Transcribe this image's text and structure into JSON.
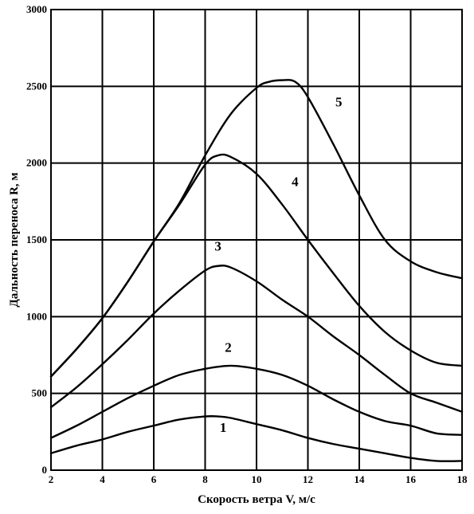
{
  "chart_data": {
    "type": "line",
    "title": "",
    "xlabel": "Скорость ветра  V, м/с",
    "ylabel": "Дальность переноса  R, м",
    "xlim": [
      2,
      18
    ],
    "ylim": [
      0,
      3000
    ],
    "xticks": [
      2,
      4,
      6,
      8,
      10,
      12,
      14,
      16,
      18
    ],
    "yticks": [
      0,
      500,
      1000,
      1500,
      2000,
      2500,
      3000
    ],
    "grid": true,
    "legend": "none",
    "line_color": "#000000",
    "grid_color": "#000000",
    "series": [
      {
        "name": "1",
        "x": [
          2,
          3,
          4,
          5,
          6,
          7,
          8,
          8.5,
          9,
          10,
          11,
          12,
          13,
          14,
          15,
          16,
          17,
          18
        ],
        "y": [
          110,
          160,
          200,
          250,
          290,
          330,
          350,
          350,
          340,
          300,
          260,
          210,
          170,
          140,
          110,
          80,
          60,
          60
        ]
      },
      {
        "name": "2",
        "x": [
          2,
          3,
          4,
          5,
          6,
          7,
          8,
          9,
          10,
          11,
          12,
          13,
          14,
          15,
          16,
          17,
          18
        ],
        "y": [
          210,
          290,
          380,
          470,
          550,
          620,
          660,
          680,
          660,
          620,
          550,
          460,
          380,
          320,
          290,
          240,
          230
        ]
      },
      {
        "name": "3",
        "x": [
          2,
          3,
          4,
          5,
          6,
          7,
          8,
          8.5,
          9,
          10,
          11,
          12,
          13,
          14,
          15,
          16,
          17,
          18
        ],
        "y": [
          410,
          540,
          690,
          850,
          1020,
          1170,
          1300,
          1330,
          1320,
          1230,
          1110,
          1000,
          870,
          750,
          620,
          500,
          440,
          380
        ]
      },
      {
        "name": "4",
        "x": [
          2,
          3,
          4,
          5,
          6,
          7,
          8,
          8.5,
          9,
          10,
          11,
          12,
          13,
          14,
          15,
          16,
          17,
          18
        ],
        "y": [
          610,
          790,
          990,
          1230,
          1490,
          1730,
          1990,
          2050,
          2040,
          1930,
          1730,
          1500,
          1280,
          1070,
          900,
          780,
          700,
          680
        ]
      },
      {
        "name": "5",
        "x": [
          2,
          3,
          4,
          5,
          6,
          7,
          8,
          9,
          10,
          10.5,
          11,
          11.5,
          12,
          13,
          14,
          15,
          16,
          17,
          18
        ],
        "y": [
          610,
          790,
          990,
          1230,
          1490,
          1740,
          2050,
          2320,
          2490,
          2530,
          2540,
          2530,
          2430,
          2120,
          1790,
          1500,
          1360,
          1290,
          1250
        ]
      }
    ]
  }
}
